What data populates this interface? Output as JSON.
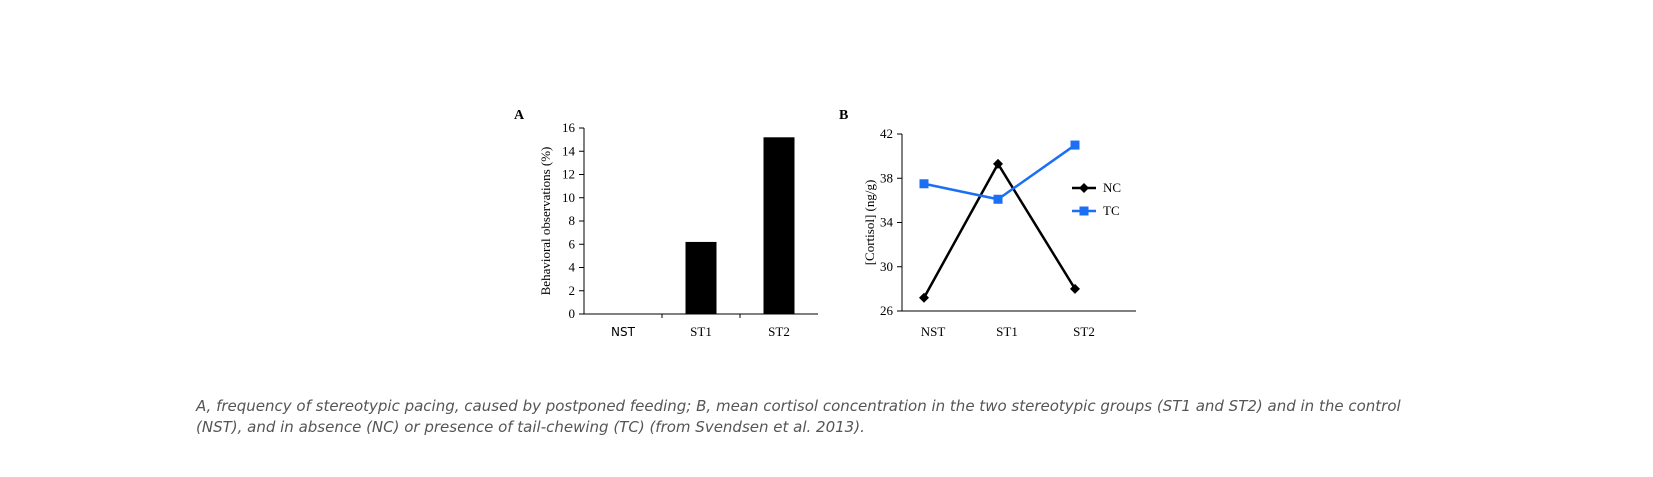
{
  "chart_data": [
    {
      "panel": "A",
      "type": "bar",
      "categories": [
        "NST",
        "ST1",
        "ST2"
      ],
      "values": [
        0,
        6.2,
        15.2
      ],
      "ylabel": "Behavioral observations (%)",
      "xlabel": "",
      "ylim": [
        0,
        16
      ],
      "yticks": [
        "0",
        "2",
        "4",
        "6",
        "8",
        "10",
        "12",
        "14",
        "16"
      ],
      "bar_color": "#000000",
      "grid": false
    },
    {
      "panel": "B",
      "type": "line",
      "categories": [
        "NST",
        "ST1",
        "ST2"
      ],
      "series": [
        {
          "name": "NC",
          "values": [
            27.2,
            39.3,
            28.0
          ],
          "color": "#000000",
          "marker": "diamond"
        },
        {
          "name": "TC",
          "values": [
            37.5,
            36.1,
            41.0
          ],
          "color": "#1a6ff5",
          "marker": "square"
        }
      ],
      "ylabel": "[Cortisol] (ng/g)",
      "xlabel": "",
      "ylim": [
        26,
        42
      ],
      "yticks": [
        "26",
        "30",
        "34",
        "38",
        "42"
      ],
      "legend": "right",
      "grid": false
    }
  ],
  "caption": {
    "line1": "A, frequency of stereotypic pacing, caused by postponed feeding; B, mean cortisol concentration in the two stereotypic groups (ST1 and ST2) and in the control",
    "line2": "(NST), and in absence (NC) or presence of tail-chewing (TC) (from Svendsen et al. 2013)."
  }
}
